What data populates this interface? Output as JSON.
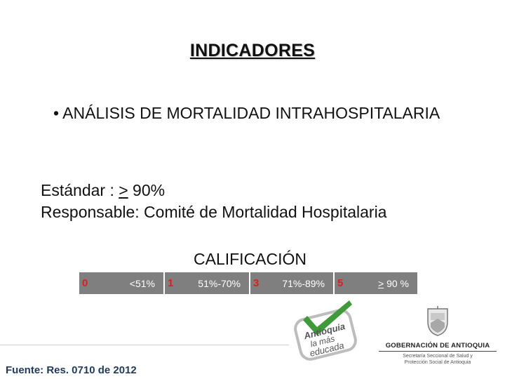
{
  "title": "INDICADORES",
  "bullet": "• ANÁLISIS DE MORTALIDAD INTRAHOSPITALARIA",
  "standard": {
    "label": "Estándar : ",
    "ge": ">",
    "value": " 90%"
  },
  "responsible": "Responsable: Comité de Mortalidad Hospitalaria",
  "calificacion_heading": "CALIFICACIÓN",
  "scale": [
    {
      "score": "0",
      "range": "<51%"
    },
    {
      "score": "1",
      "range": "51%-70%"
    },
    {
      "score": "3",
      "range": "71%-89%"
    },
    {
      "score": "5",
      "range_ge": ">",
      "range": " 90 %"
    }
  ],
  "source": "Fuente: Res. 0710 de 2012",
  "logo_antioquia": {
    "line1": "Antioquia",
    "line2": "la más",
    "line3": "educada"
  },
  "logo_gobernacion": {
    "name": "GOBERNACIÓN DE ANTIOQUIA",
    "sub1": "Secretaría Seccional de Salud y",
    "sub2": "Protección Social de Antioquia"
  },
  "colors": {
    "scale_bg": "#7f7f7f",
    "score_red": "#d9201c",
    "logo_green": "#3f9b3a",
    "source_blue": "#1f3a5e"
  }
}
